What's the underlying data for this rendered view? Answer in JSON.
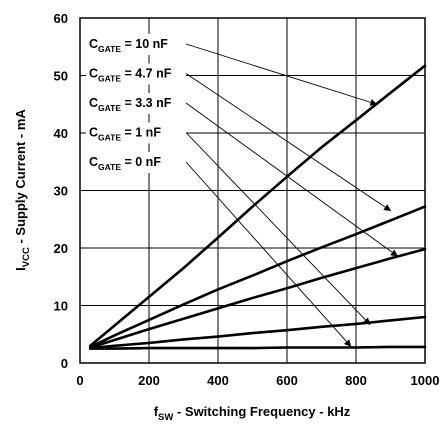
{
  "chart_data": {
    "type": "line",
    "xlabel": "f",
    "xlabel_sub": "SW",
    "xlabel_rest": " - Switching Frequency - kHz",
    "ylabel": "I",
    "ylabel_sub": "VCC",
    "ylabel_rest": " - Supply Current - mA",
    "xlim": [
      0,
      1000
    ],
    "ylim": [
      0,
      60
    ],
    "xticks": [
      0,
      200,
      400,
      600,
      800,
      1000
    ],
    "yticks": [
      0,
      10,
      20,
      30,
      40,
      50,
      60
    ],
    "grid": true,
    "series": [
      {
        "name": "C",
        "name_sub": "GATE",
        "name_rest": " = 10 nF",
        "x": [
          30,
          100,
          200,
          300,
          400,
          500,
          600,
          700,
          800,
          900,
          1000
        ],
        "y": [
          3,
          6.5,
          11.5,
          16.5,
          21.8,
          27.2,
          32.4,
          37.5,
          42.2,
          47,
          51.7
        ],
        "arrow_to": [
          860,
          45
        ]
      },
      {
        "name": "C",
        "name_sub": "GATE",
        "name_rest": " = 4.7 nF",
        "x": [
          30,
          100,
          200,
          300,
          400,
          500,
          600,
          700,
          800,
          900,
          1000
        ],
        "y": [
          2.8,
          4.8,
          7.5,
          10.2,
          12.8,
          15.2,
          17.7,
          20.1,
          22.4,
          24.8,
          27.2
        ],
        "arrow_to": [
          900,
          26.5
        ]
      },
      {
        "name": "C",
        "name_sub": "GATE",
        "name_rest": " = 3.3 nF",
        "x": [
          30,
          100,
          200,
          300,
          400,
          500,
          600,
          700,
          800,
          900,
          1000
        ],
        "y": [
          2.7,
          4.0,
          5.9,
          7.7,
          9.5,
          11.3,
          13.0,
          14.8,
          16.5,
          18.2,
          19.8
        ],
        "arrow_to": [
          920,
          18.6
        ]
      },
      {
        "name": "C",
        "name_sub": "GATE",
        "name_rest": " = 1 nF",
        "x": [
          30,
          100,
          200,
          300,
          400,
          500,
          600,
          700,
          800,
          900,
          1000
        ],
        "y": [
          2.6,
          3.0,
          3.5,
          4.1,
          4.6,
          5.2,
          5.7,
          6.3,
          6.8,
          7.4,
          8.0
        ],
        "arrow_to": [
          840,
          6.7
        ]
      },
      {
        "name": "C",
        "name_sub": "GATE",
        "name_rest": " = 0 nF",
        "x": [
          30,
          100,
          200,
          300,
          400,
          500,
          600,
          700,
          800,
          900,
          1000
        ],
        "y": [
          2.5,
          2.5,
          2.6,
          2.6,
          2.6,
          2.6,
          2.7,
          2.7,
          2.7,
          2.8,
          2.8
        ],
        "arrow_to": [
          785,
          2.9
        ]
      }
    ]
  }
}
